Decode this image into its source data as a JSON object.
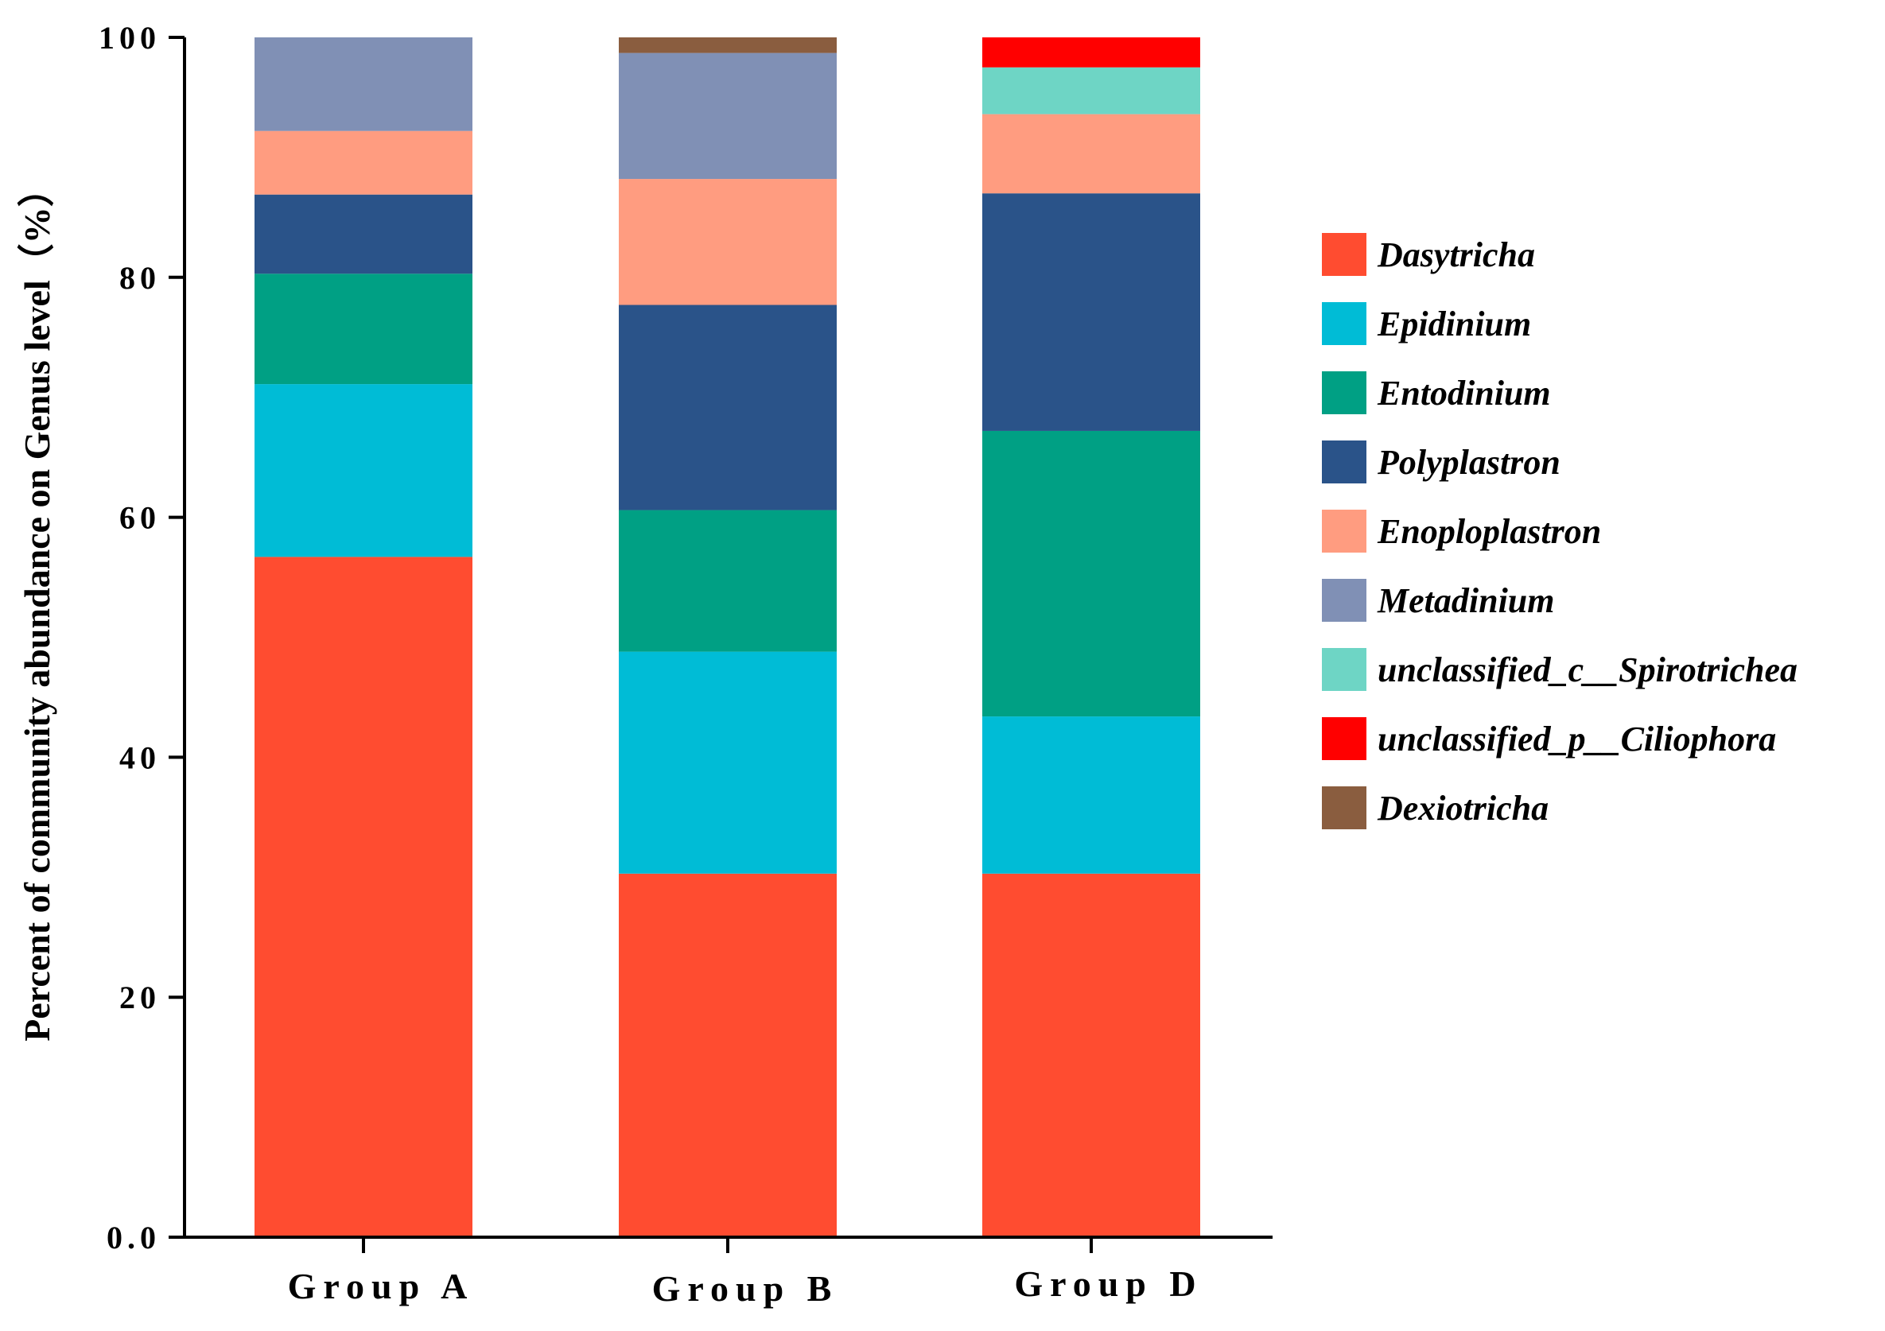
{
  "chart_data": {
    "type": "stacked-bar",
    "title": "",
    "xlabel": "",
    "ylabel": "Percent of community abundance on Genus level（%）",
    "ylim": [
      0,
      100
    ],
    "yticks": [
      {
        "value": 0,
        "label": "0.0"
      },
      {
        "value": 20,
        "label": "20"
      },
      {
        "value": 40,
        "label": "40"
      },
      {
        "value": 60,
        "label": "60"
      },
      {
        "value": 80,
        "label": "80"
      },
      {
        "value": 100,
        "label": "100"
      }
    ],
    "categories": [
      "Group A",
      "Group B",
      "Group D"
    ],
    "legend_position": "right",
    "series": [
      {
        "name": "Dasytricha",
        "color": "#FF4C30",
        "values": [
          56.7,
          30.3,
          30.3
        ]
      },
      {
        "name": "Epidinium",
        "color": "#00BCD6",
        "values": [
          14.4,
          18.5,
          13.1
        ]
      },
      {
        "name": "Entodinium",
        "color": "#00A084",
        "values": [
          9.2,
          11.8,
          23.8
        ]
      },
      {
        "name": "Polyplastron",
        "color": "#2A5389",
        "values": [
          6.6,
          17.1,
          19.8
        ]
      },
      {
        "name": "Enoploplastron",
        "color": "#FF9C80",
        "values": [
          5.3,
          10.5,
          6.6
        ]
      },
      {
        "name": "Metadinium",
        "color": "#8090B5",
        "values": [
          7.8,
          10.5,
          0
        ]
      },
      {
        "name": "unclassified_c__Spirotrichea",
        "color": "#6ED5C5",
        "values": [
          0,
          0,
          3.9
        ]
      },
      {
        "name": "unclassified_p__Ciliophora",
        "color": "#FF0000",
        "values": [
          0,
          0,
          2.5
        ]
      },
      {
        "name": "Dexiotricha",
        "color": "#8A5D3F",
        "values": [
          0,
          1.3,
          0
        ]
      }
    ]
  }
}
